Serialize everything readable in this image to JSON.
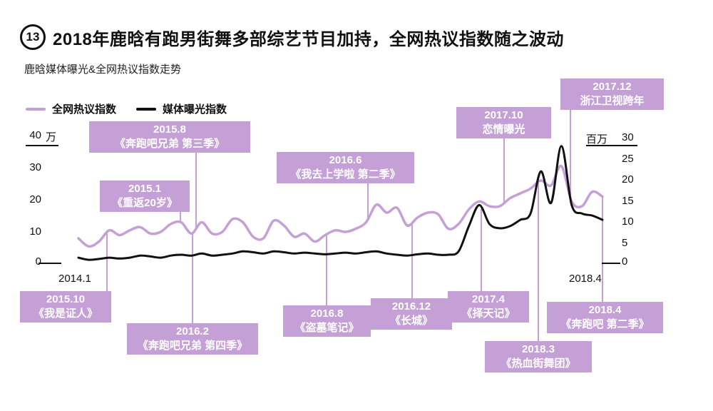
{
  "page": {
    "badge_number": "13",
    "title": "2018年鹿晗有跑男街舞多部综艺节目加持，全网热议指数随之波动",
    "subtitle": "鹿晗媒体曝光&全网热议指数走势"
  },
  "axes": {
    "left": {
      "unit": "万",
      "ticks": [
        "40",
        "30",
        "20",
        "10",
        "0"
      ]
    },
    "right": {
      "unit": "百万",
      "ticks": [
        "30",
        "25",
        "20",
        "15",
        "10",
        "5",
        "0"
      ]
    },
    "x": {
      "start_label": "2014.1",
      "end_label": "2018.4"
    }
  },
  "colors": {
    "accent": "#c5a0d6",
    "ink": "#111111",
    "background": "#ffffff"
  },
  "chart_data": {
    "type": "line",
    "title": "鹿晗媒体曝光&全网热议指数走势",
    "x_interval": "monthly",
    "x_range": [
      "2014.1",
      "2018.4"
    ],
    "x_months": [
      "2014.1",
      "2014.2",
      "2014.3",
      "2014.4",
      "2014.5",
      "2014.6",
      "2014.7",
      "2014.8",
      "2014.9",
      "2014.10",
      "2014.11",
      "2014.12",
      "2015.1",
      "2015.2",
      "2015.3",
      "2015.4",
      "2015.5",
      "2015.6",
      "2015.7",
      "2015.8",
      "2015.9",
      "2015.10",
      "2015.11",
      "2015.12",
      "2016.1",
      "2016.2",
      "2016.3",
      "2016.4",
      "2016.5",
      "2016.6",
      "2016.7",
      "2016.8",
      "2016.9",
      "2016.10",
      "2016.11",
      "2016.12",
      "2017.1",
      "2017.2",
      "2017.3",
      "2017.4",
      "2017.5",
      "2017.6",
      "2017.7",
      "2017.8",
      "2017.9",
      "2017.10",
      "2017.11",
      "2017.12",
      "2018.1",
      "2018.2",
      "2018.3",
      "2018.4"
    ],
    "left_axis": {
      "label": "万",
      "range": [
        0,
        40
      ]
    },
    "right_axis": {
      "label": "百万",
      "range": [
        0,
        30
      ]
    },
    "grid": false,
    "legend_position": "top-left",
    "series": [
      {
        "name": "全网热议指数",
        "axis": "left",
        "unit": "万",
        "color": "#c5a0d6",
        "values": [
          8,
          5.5,
          7,
          10.5,
          9,
          10.5,
          11.5,
          9.5,
          10,
          12.5,
          13,
          9.5,
          13,
          9.5,
          10,
          14,
          13,
          8.5,
          8,
          13.5,
          12,
          8.5,
          9.5,
          7,
          9,
          10.5,
          10,
          11,
          13,
          18.5,
          16,
          17.5,
          12,
          14.5,
          16,
          15.5,
          11,
          12.5,
          17,
          19.5,
          18,
          18,
          20.5,
          22,
          23.5,
          26,
          24.5,
          30.5,
          19.5,
          18,
          22.5,
          21
        ]
      },
      {
        "name": "媒体曝光指数",
        "axis": "right",
        "unit": "百万",
        "color": "#111111",
        "values": [
          1.5,
          1,
          1.2,
          1.5,
          1.3,
          1.5,
          2,
          1.8,
          1.5,
          2,
          2.2,
          2,
          2.5,
          2,
          2.2,
          2.5,
          3,
          2.8,
          2.5,
          3,
          2.8,
          2.5,
          2.7,
          2.5,
          2.3,
          2.5,
          2.7,
          2.5,
          2.8,
          3,
          2.5,
          2.2,
          2,
          2.3,
          2.5,
          2.2,
          2.2,
          3,
          9,
          14,
          9.5,
          8.5,
          9,
          10.5,
          12,
          22,
          14.5,
          28,
          14,
          12,
          11.5,
          10.5
        ]
      }
    ],
    "annotations": [
      {
        "date": "2015.8",
        "label": "《奔跑吧兄弟 第三季》"
      },
      {
        "date": "2015.1",
        "label": "《重返20岁》"
      },
      {
        "date": "2016.6",
        "label": "《我去上学啦 第二季》"
      },
      {
        "date": "2017.10",
        "label": "恋情曝光"
      },
      {
        "date": "2017.12",
        "label": "浙江卫视跨年"
      },
      {
        "date": "2015.10",
        "label": "《我是证人》"
      },
      {
        "date": "2016.2",
        "label": "《奔跑吧兄弟 第四季》"
      },
      {
        "date": "2016.8",
        "label": "《盗墓笔记》"
      },
      {
        "date": "2016.12",
        "label": "《长城》"
      },
      {
        "date": "2017.4",
        "label": "《择天记》"
      },
      {
        "date": "2018.3",
        "label": "《热血街舞团》"
      },
      {
        "date": "2018.4",
        "label": "《奔跑吧 第二季》"
      }
    ]
  }
}
